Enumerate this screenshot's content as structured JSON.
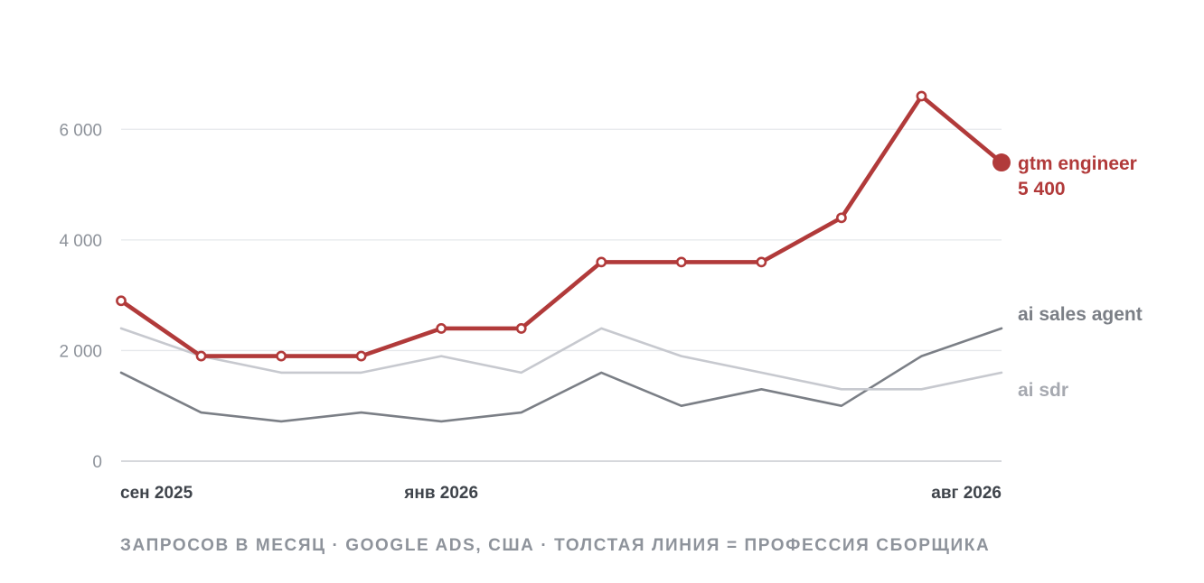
{
  "chart_data": {
    "type": "line",
    "x": [
      "сен 2025",
      "окт 2025",
      "ноя 2025",
      "дек 2025",
      "янв 2026",
      "фев 2026",
      "мар 2026",
      "апр 2026",
      "май 2026",
      "июн 2026",
      "июл 2026",
      "авг 2026"
    ],
    "x_tick_labels": [
      "сен 2025",
      "янв 2026",
      "авг 2026"
    ],
    "y_ticks": [
      "0",
      "2 000",
      "4 000",
      "6 000"
    ],
    "ylim": [
      0,
      7000
    ],
    "grid": true,
    "series": [
      {
        "name": "ai sales agent",
        "values": [
          1600,
          880,
          720,
          880,
          720,
          880,
          1600,
          1000,
          1300,
          1000,
          1900,
          2400
        ],
        "color": "#7b7f86"
      },
      {
        "name": "ai sdr",
        "values": [
          2400,
          1900,
          1600,
          1600,
          1900,
          1600,
          2400,
          1900,
          1600,
          1300,
          1300,
          1600
        ],
        "color": "#c7c9cf"
      },
      {
        "name": "gtm engineer",
        "values": [
          2900,
          1900,
          1900,
          1900,
          2400,
          2400,
          3600,
          3600,
          3600,
          4400,
          6600,
          5400
        ],
        "color": "#b13a3a",
        "last_value_label": "5 400"
      }
    ],
    "caption": "ЗАПРОСОВ В МЕСЯЦ · GOOGLE ADS, США · ТОЛСТАЯ ЛИНИЯ = ПРОФЕССИЯ СБОРЩИКА"
  }
}
